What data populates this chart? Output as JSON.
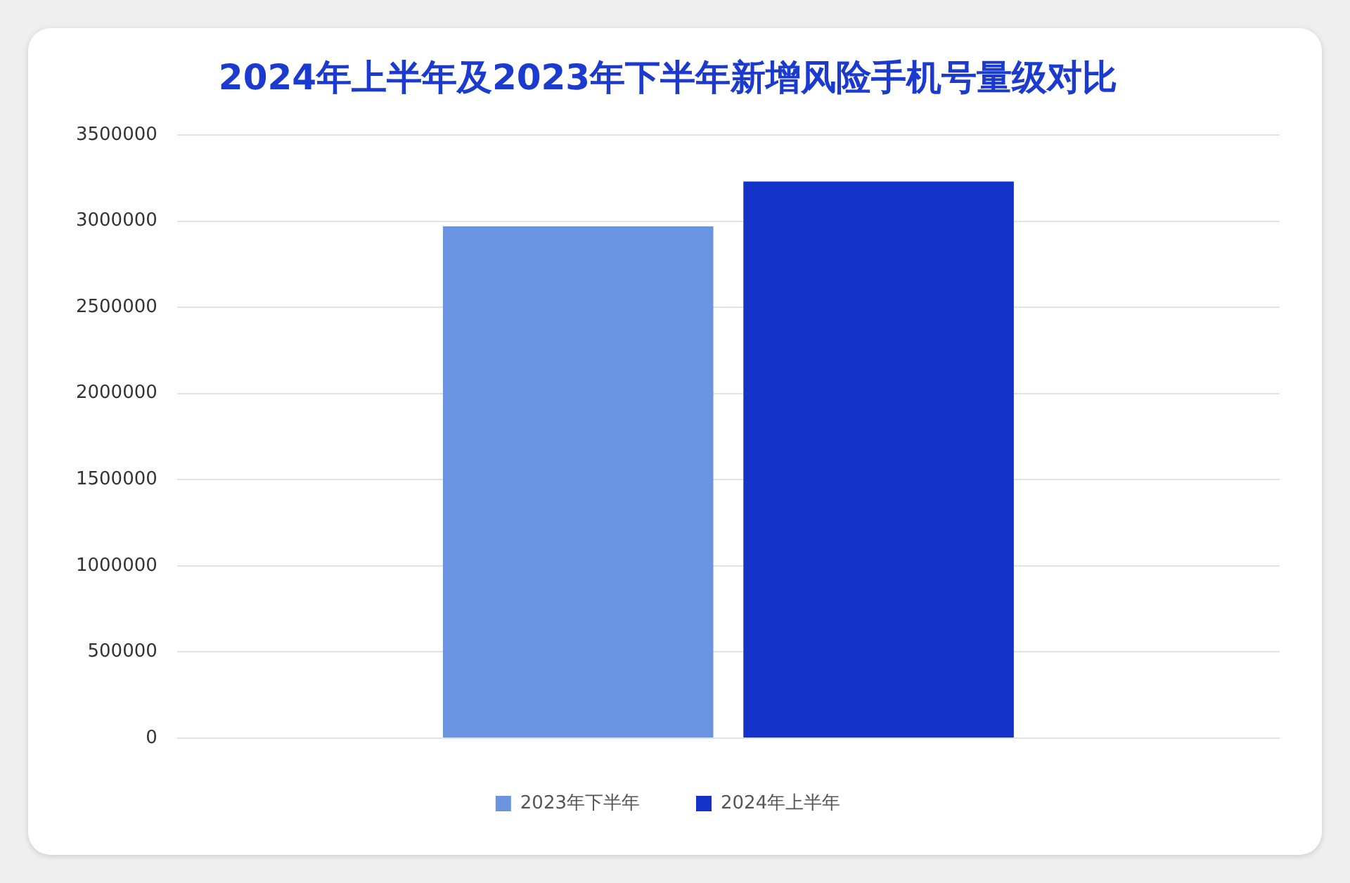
{
  "chart_data": {
    "type": "bar",
    "title": "2024年上半年及2023年下半年新增风险手机号量级对比",
    "categories": [
      null
    ],
    "series": [
      {
        "name": "2023年下半年",
        "color": "#6b94e0",
        "values": [
          2970000
        ]
      },
      {
        "name": "2024年上半年",
        "color": "#1232c8",
        "values": [
          3230000
        ]
      }
    ],
    "ylim": [
      0,
      3500000
    ],
    "yticks": [
      0,
      500000,
      1000000,
      1500000,
      2000000,
      2500000,
      3000000,
      3500000
    ],
    "grid": "y",
    "legend": "bottom",
    "tick_labels": "y"
  }
}
